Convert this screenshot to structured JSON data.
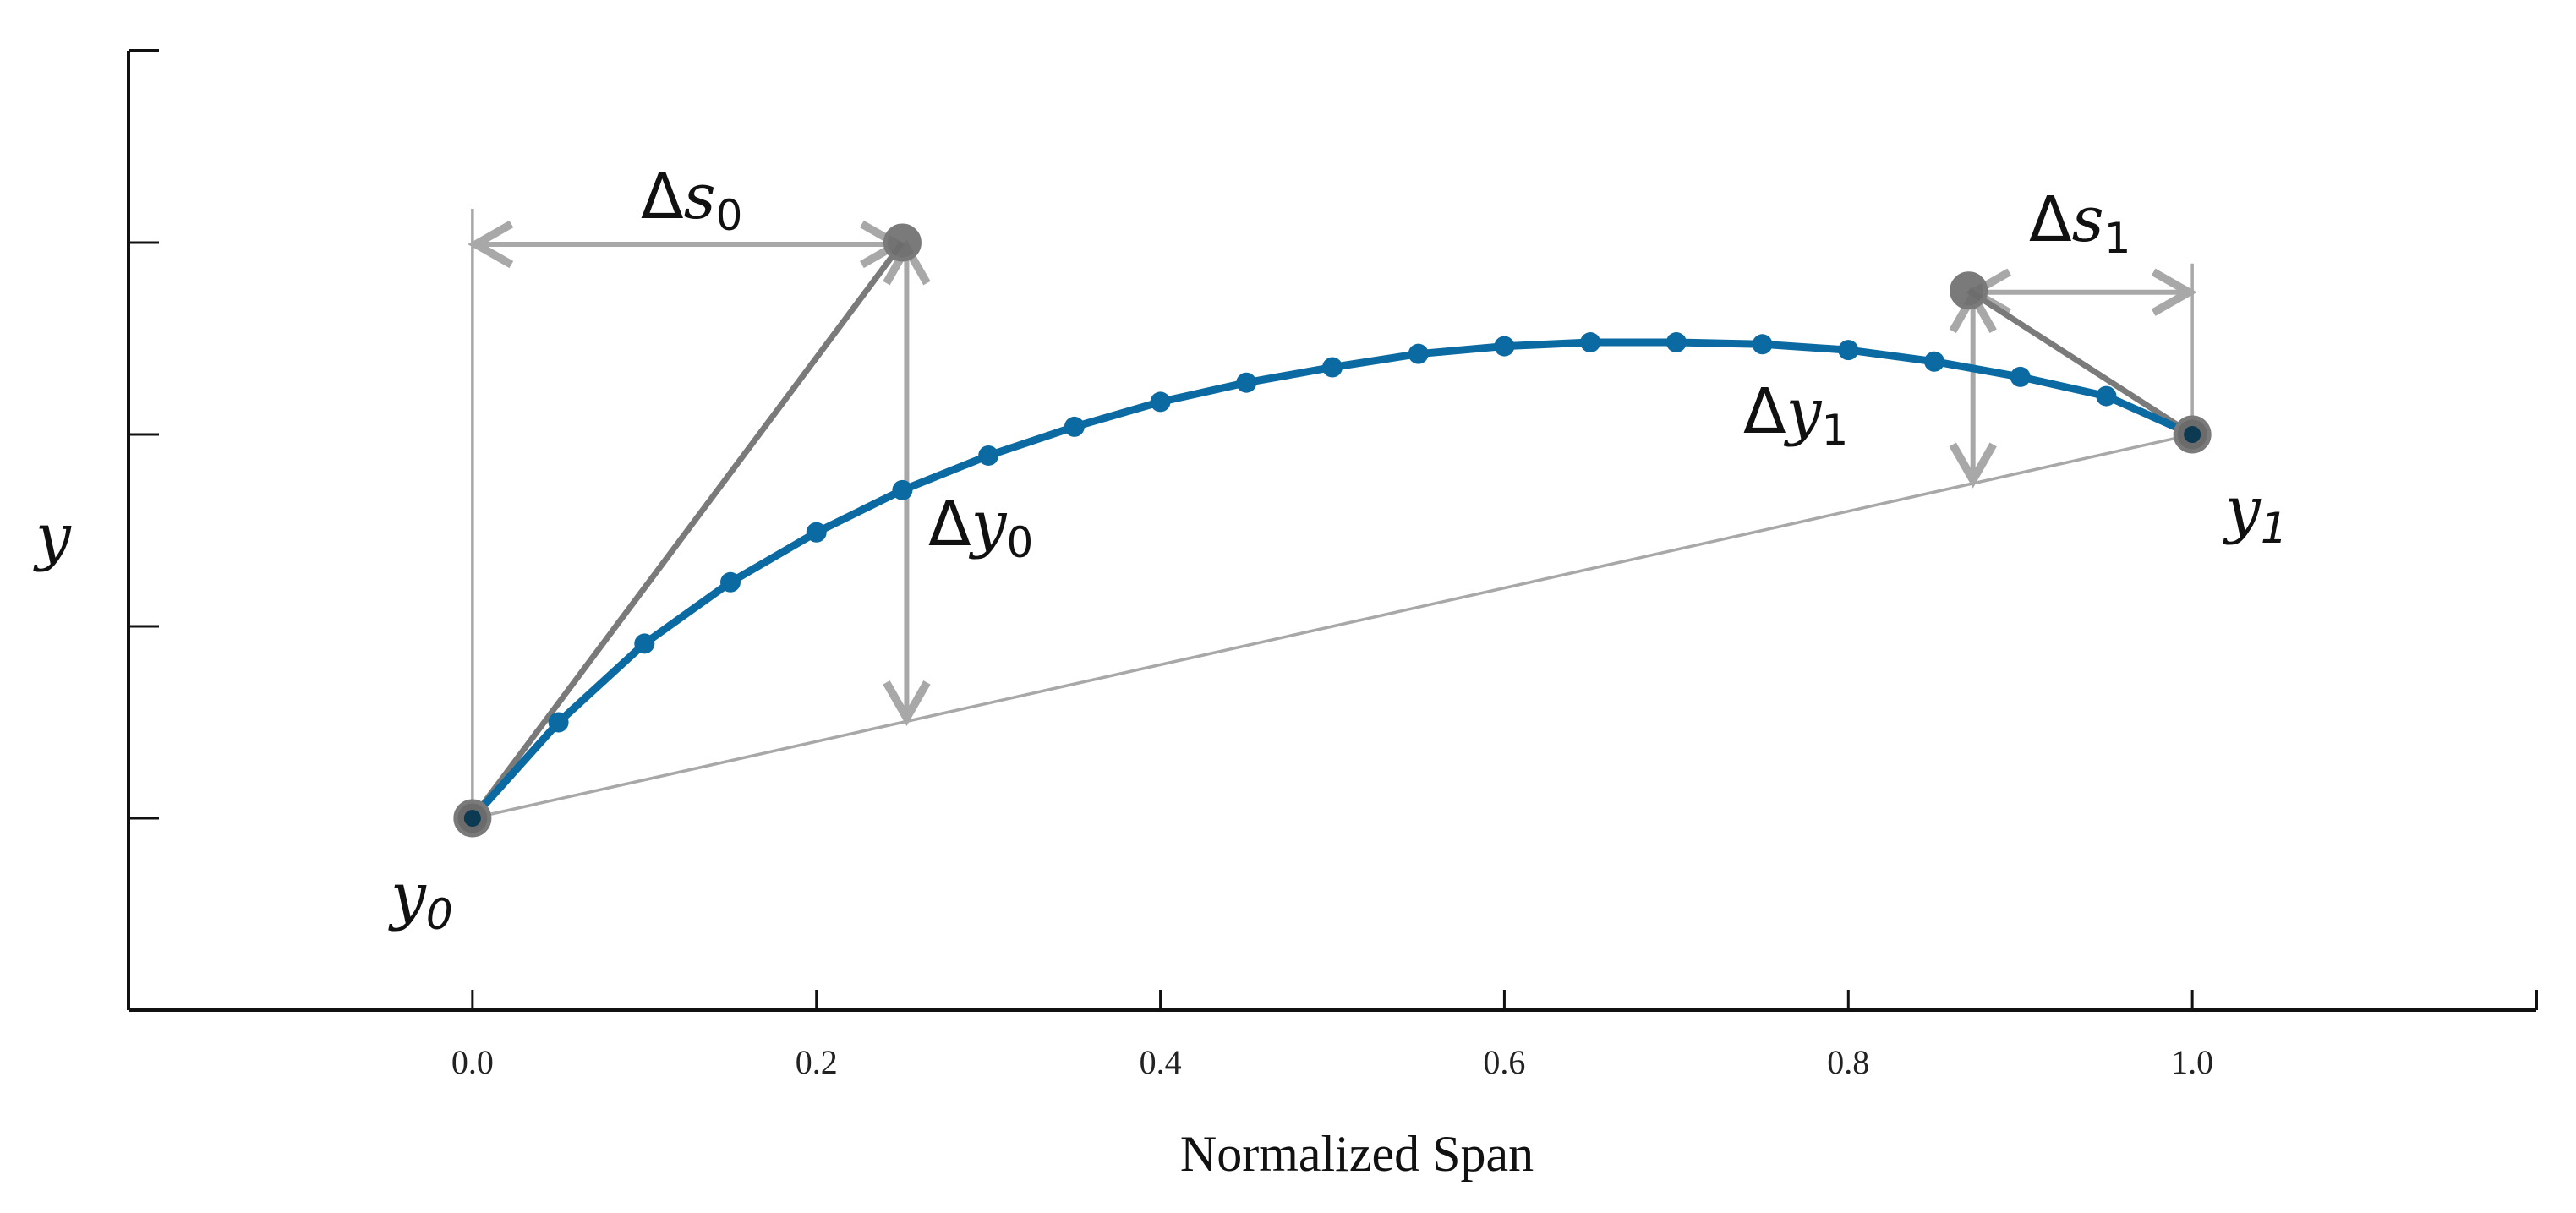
{
  "chart_data": {
    "type": "line",
    "xlabel": "Normalized Span",
    "ylabel": "y",
    "xlim": [
      -0.2,
      1.2
    ],
    "ylim": [
      -1.0,
      4.0
    ],
    "xticks": [
      0.0,
      0.2,
      0.4,
      0.6,
      0.8,
      1.0
    ],
    "xtick_labels": [
      "0.0",
      "0.2",
      "0.4",
      "0.6",
      "0.8",
      "1.0"
    ],
    "yticks": [
      0,
      1,
      2,
      3,
      4
    ],
    "ytick_labels": [
      "",
      "",
      "",
      "",
      ""
    ],
    "series": [
      {
        "name": "curve",
        "color": "#0a6aa1",
        "x": [
          0.0,
          0.05,
          0.1,
          0.15,
          0.2,
          0.25,
          0.3,
          0.35,
          0.4,
          0.45,
          0.5,
          0.55,
          0.6,
          0.65,
          0.7,
          0.75,
          0.8,
          0.85,
          0.9,
          0.95,
          1.0
        ],
        "y": [
          0.0,
          0.5,
          0.91,
          1.23,
          1.49,
          1.71,
          1.89,
          2.04,
          2.17,
          2.27,
          2.35,
          2.42,
          2.46,
          2.48,
          2.48,
          2.47,
          2.44,
          2.38,
          2.3,
          2.2,
          2.0
        ]
      }
    ],
    "endpoints": [
      {
        "x": 0.0,
        "y": 0.0,
        "label": "y",
        "subscript": "0"
      },
      {
        "x": 1.0,
        "y": 2.0,
        "label": "y",
        "subscript": "1"
      }
    ],
    "control_points": [
      {
        "x": 0.25,
        "y": 3.0
      },
      {
        "x": 0.87,
        "y": 2.75
      }
    ],
    "annotations": [
      {
        "name": "delta-s0",
        "delta": "Δ",
        "label": "s",
        "subscript": "0"
      },
      {
        "name": "delta-y0",
        "delta": "Δ",
        "label": "y",
        "subscript": "0"
      },
      {
        "name": "delta-s1",
        "delta": "Δ",
        "label": "s",
        "subscript": "1"
      },
      {
        "name": "delta-y1",
        "delta": "Δ",
        "label": "y",
        "subscript": "1"
      }
    ],
    "colors": {
      "curve": "#0a6aa1",
      "control_line": "#7a7a7a",
      "guide": "#a8a8a8",
      "axis": "#111111",
      "marker_fill": "#6b6b6b",
      "endpoint_core": "#0b3a52"
    }
  }
}
